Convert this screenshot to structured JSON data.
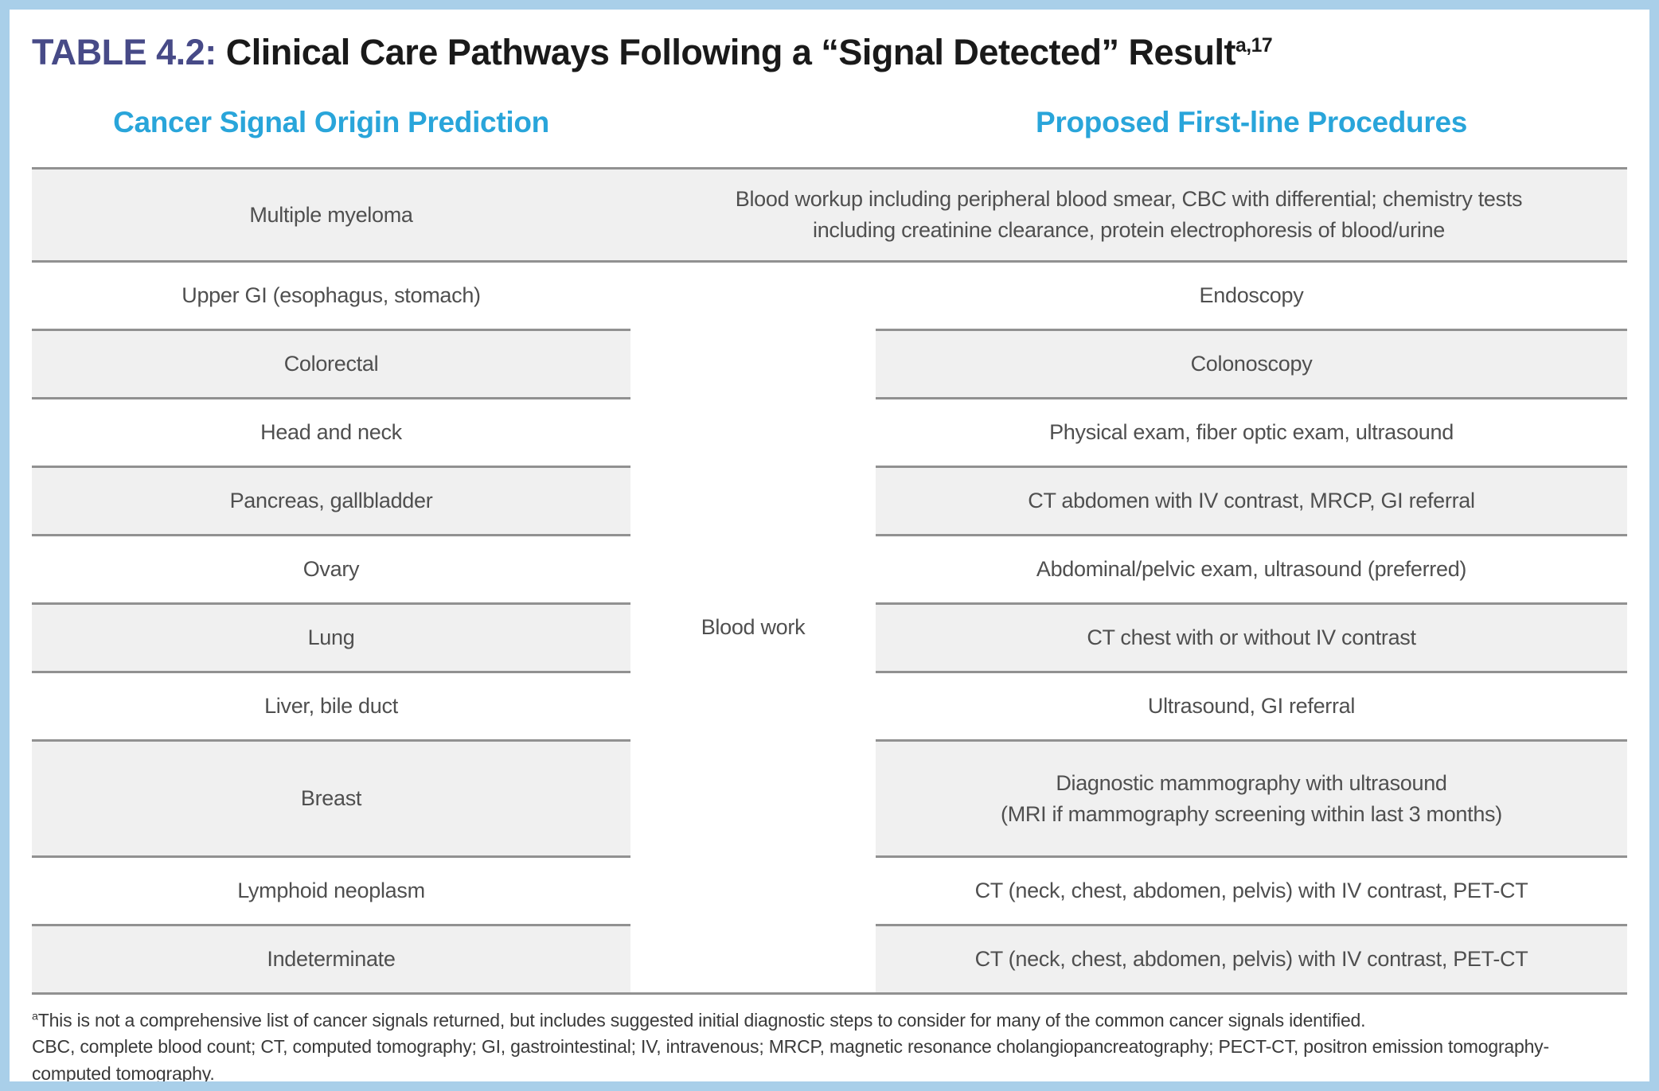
{
  "page": {
    "title": {
      "label": "TABLE 4.2:",
      "text": " Clinical Care Pathways Following a “Signal Detected” Result",
      "superscript": "a,17"
    },
    "colors": {
      "frame_blue": "#a9cfe9",
      "header_blue": "#29a5da",
      "title_purple": "#474a87",
      "row_gray": "#f0f0f0",
      "border_gray": "#919191"
    }
  },
  "table": {
    "headers": {
      "left": "Cancer Signal Origin Prediction",
      "right": "Proposed First-line Procedures"
    },
    "blood_work_label": "Blood work",
    "rows": [
      {
        "origin": "Multiple myeloma",
        "procedure": [
          "Blood workup including peripheral blood smear, CBC with differential; chemistry tests",
          "including creatinine clearance, protein electrophoresis of blood/urine"
        ]
      },
      {
        "origin": "Upper GI (esophagus, stomach)",
        "procedure": "Endoscopy"
      },
      {
        "origin": "Colorectal",
        "procedure": "Colonoscopy"
      },
      {
        "origin": "Head and neck",
        "procedure": "Physical exam, fiber optic exam, ultrasound"
      },
      {
        "origin": "Pancreas, gallbladder",
        "procedure": "CT abdomen with IV contrast, MRCP, GI referral"
      },
      {
        "origin": "Ovary",
        "procedure": "Abdominal/pelvic exam, ultrasound (preferred)"
      },
      {
        "origin": "Lung",
        "procedure": "CT chest with or without IV contrast"
      },
      {
        "origin": "Liver, bile duct",
        "procedure": "Ultrasound, GI referral"
      },
      {
        "origin": "Breast",
        "procedure": [
          "Diagnostic mammography with ultrasound",
          "(MRI if mammography screening within last 3 months)"
        ]
      },
      {
        "origin": "Lymphoid neoplasm",
        "procedure": "CT (neck, chest, abdomen, pelvis) with IV contrast, PET-CT"
      },
      {
        "origin": "Indeterminate",
        "procedure": "CT (neck, chest, abdomen, pelvis) with IV contrast, PET-CT"
      }
    ]
  },
  "footnotes": {
    "marker": "a",
    "note": "This is not a comprehensive list of cancer signals returned, but includes suggested initial diagnostic steps to consider for many of the common cancer signals identified.",
    "abbreviations": "CBC, complete blood count; CT, computed tomography; GI, gastrointestinal; IV, intravenous; MRCP, magnetic resonance cholangiopancreatography; PECT-CT, positron emission tomography-computed tomography."
  }
}
